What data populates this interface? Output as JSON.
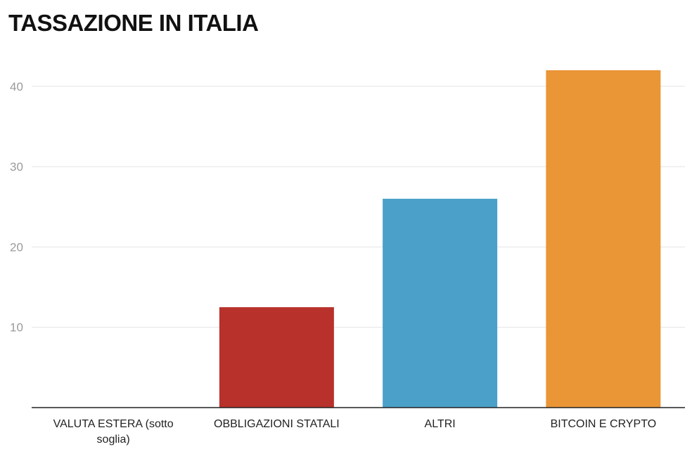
{
  "chart_data": {
    "type": "bar",
    "title": "TASSAZIONE IN ITALIA",
    "categories": [
      "VALUTA ESTERA (sotto soglia)",
      "OBBLIGAZIONI STATALI",
      "ALTRI",
      "BITCOIN E CRYPTO"
    ],
    "category_lines": [
      [
        "VALUTA ESTERA (sotto",
        "soglia)"
      ],
      [
        "OBBLIGAZIONI STATALI"
      ],
      [
        "ALTRI"
      ],
      [
        "BITCOIN E CRYPTO"
      ]
    ],
    "values": [
      0,
      12.5,
      26,
      42
    ],
    "colors": [
      "#b8312b",
      "#b8312b",
      "#4aa0c9",
      "#ea9536"
    ],
    "xlabel": "",
    "ylabel": "",
    "ylim": [
      0,
      44
    ],
    "yticks": [
      10,
      20,
      30,
      40
    ],
    "ytick_labels": [
      "10",
      "20",
      "30",
      "40"
    ],
    "grid": true,
    "legend": "none"
  }
}
